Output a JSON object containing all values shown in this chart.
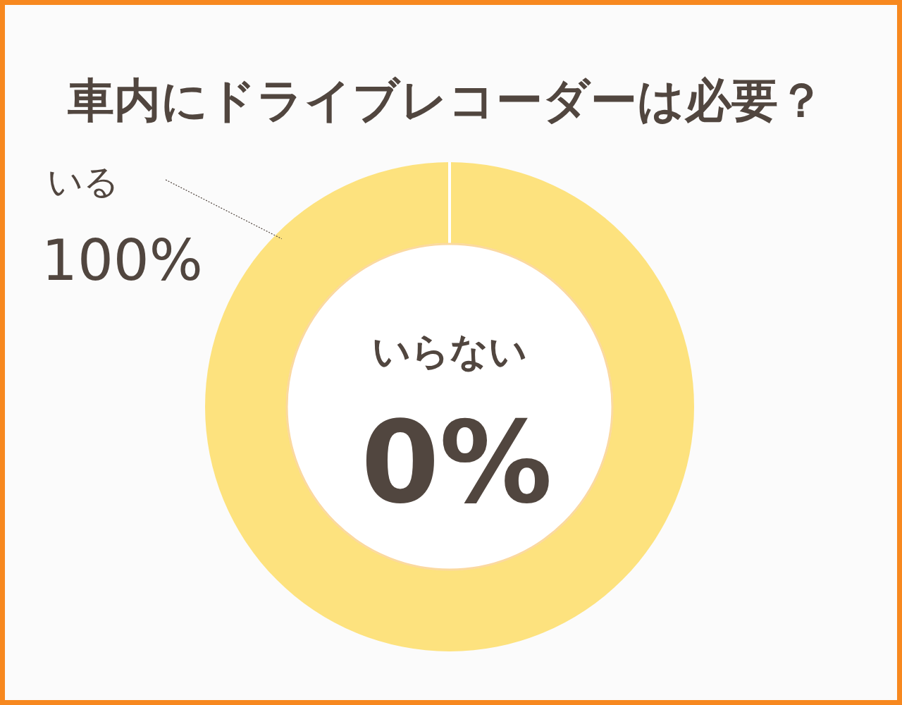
{
  "chart_data": {
    "type": "donut",
    "title": "車内にドライブレコーダーは必要？",
    "categories": [
      "いる",
      "いらない"
    ],
    "values": [
      100,
      0
    ],
    "colors": [
      "#fde27e",
      "#ffffff"
    ],
    "value_labels": [
      "100%",
      "0%"
    ]
  }
}
